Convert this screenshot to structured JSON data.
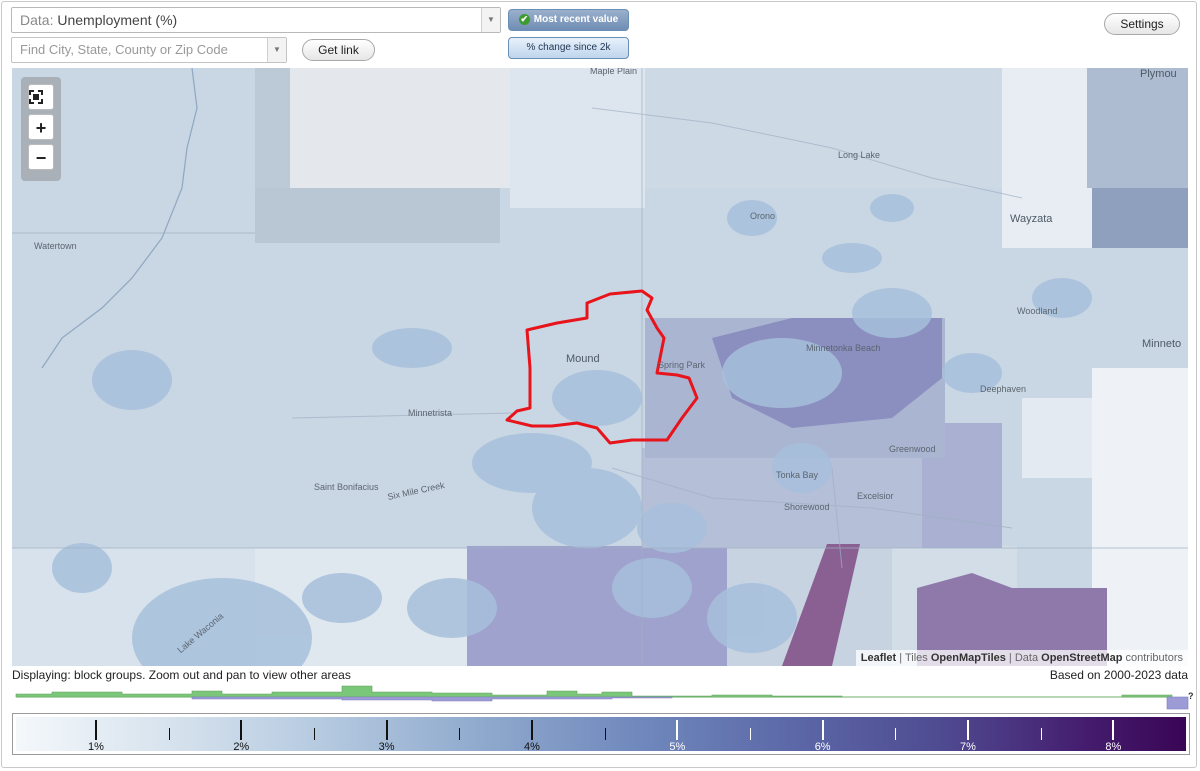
{
  "data_select": {
    "prefix": "Data:",
    "value": "Unemployment (%)"
  },
  "search": {
    "placeholder": "Find City, State, County or Zip Code"
  },
  "buttons": {
    "get_link": "Get link",
    "settings": "Settings",
    "most_recent": "Most recent value",
    "pct_change": "% change since 2k"
  },
  "map": {
    "labels": {
      "maple_plain": "Maple Plain",
      "plymouth": "Plymou",
      "long_lake": "Long Lake",
      "orono": "Orono",
      "wayzata": "Wayzata",
      "watertown": "Watertown",
      "woodland": "Woodland",
      "minnetonka_beach": "Minnetonka Beach",
      "minnetonka": "Minneto",
      "mound": "Mound",
      "spring_park": "Spring Park",
      "deephaven": "Deephaven",
      "minnetrista": "Minnetrista",
      "greenwood": "Greenwood",
      "tonka_bay": "Tonka Bay",
      "excelsior": "Excelsior",
      "shorewood": "Shorewood",
      "st_bonifacius": "Saint Bonifacius",
      "six_mile_creek": "Six Mile Creek",
      "lake_waconia": "Lake Waconia"
    },
    "attribution": {
      "leaflet": "Leaflet",
      "tiles_prefix": "Tiles",
      "tiles": "OpenMapTiles",
      "data_prefix": "Data",
      "data": "OpenStreetMap",
      "contributors": "contributors"
    }
  },
  "status": {
    "displaying": "Displaying: block groups. Zoom out and pan to view other areas",
    "based_on": "Based on 2000-2023 data",
    "unknown": "?"
  },
  "legend": {
    "ticks": [
      {
        "label": "1%",
        "value": 1
      },
      {
        "label": "2%",
        "value": 2
      },
      {
        "label": "3%",
        "value": 3
      },
      {
        "label": "4%",
        "value": 4
      },
      {
        "label": "5%",
        "value": 5
      },
      {
        "label": "6%",
        "value": 6
      },
      {
        "label": "7%",
        "value": 7
      },
      {
        "label": "8%",
        "value": 8
      }
    ],
    "min": 0.45,
    "max": 8.5
  },
  "colors": {
    "highlight_outline": "#e8141b",
    "histogram_green": "#7bc77a",
    "histogram_purple": "#9d9bd6"
  }
}
